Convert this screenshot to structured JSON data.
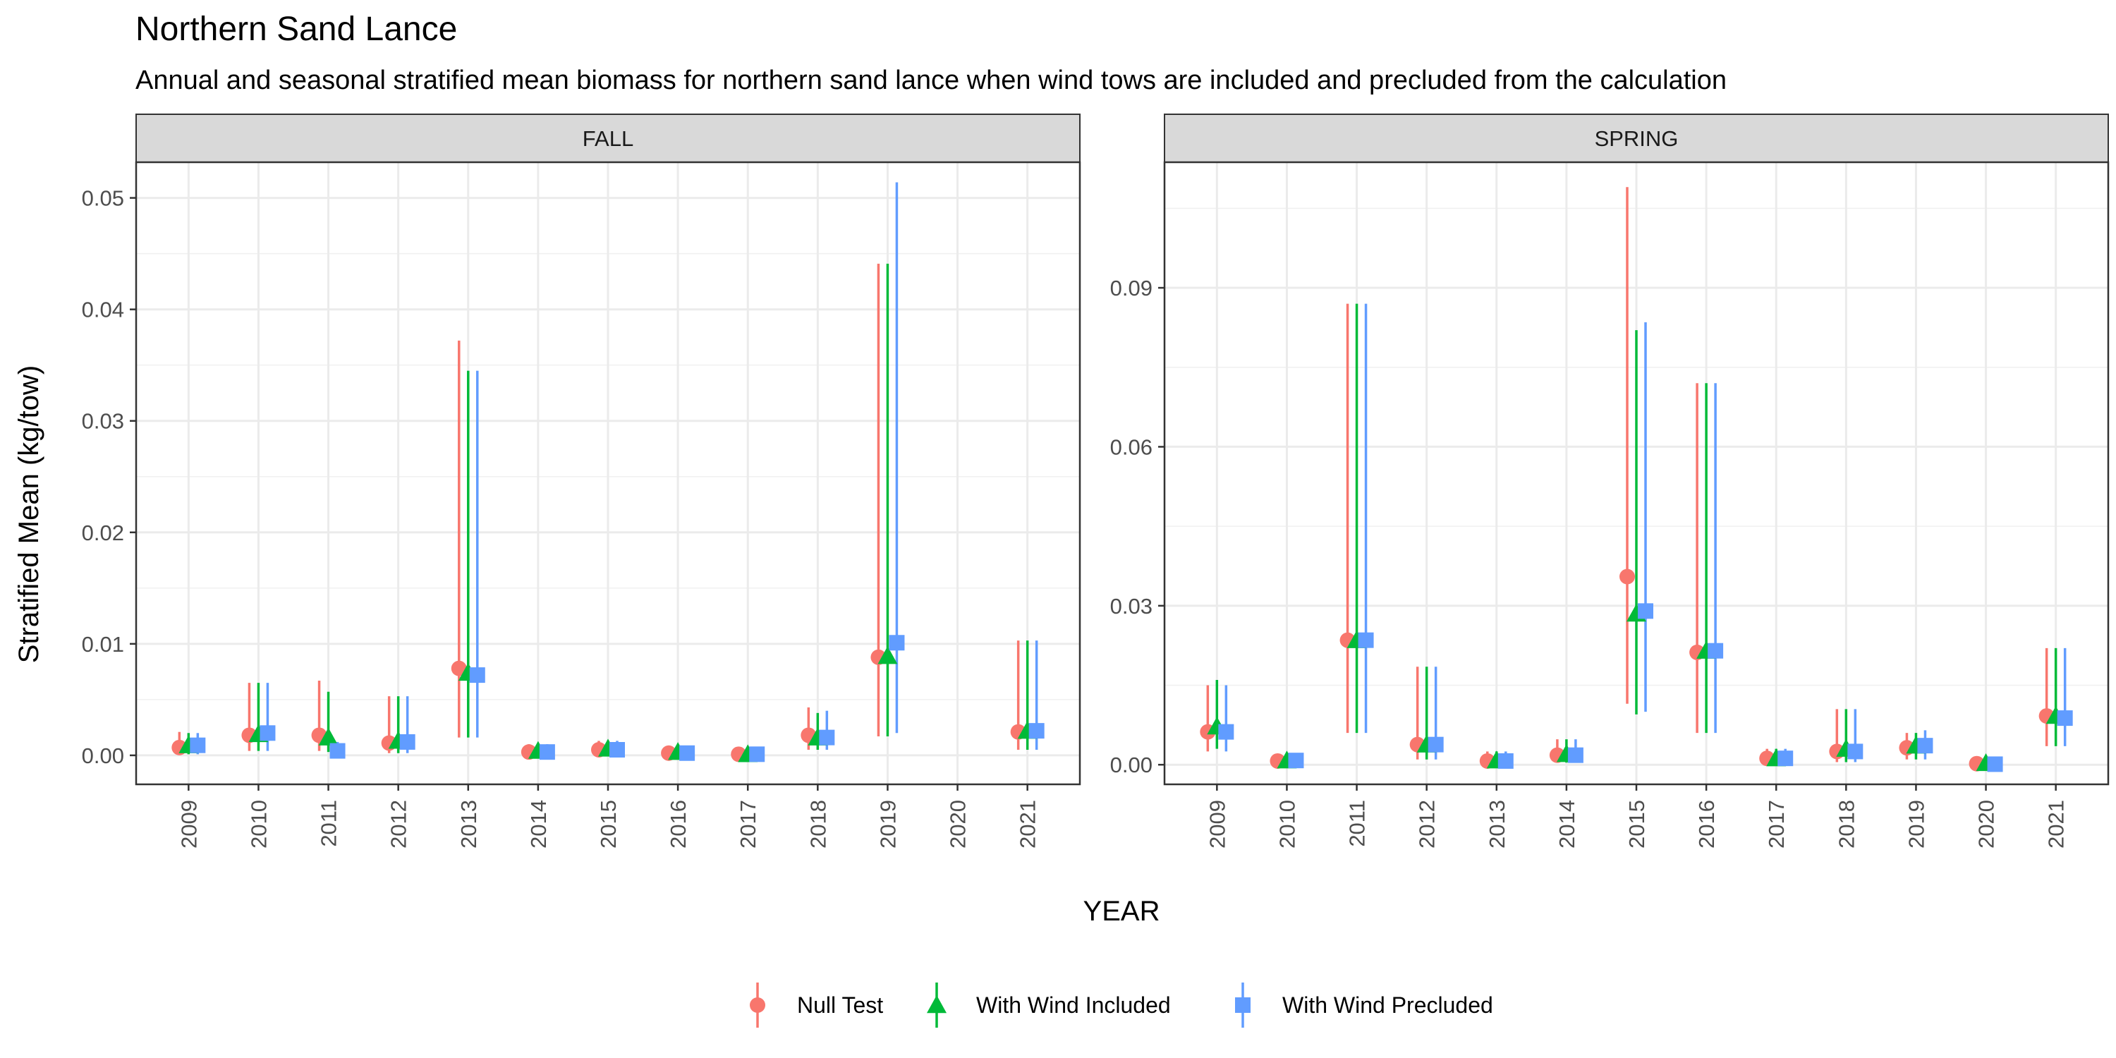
{
  "title": "Northern Sand Lance",
  "subtitle": "Annual and seasonal stratified mean biomass for northern sand lance when wind tows are included and precluded from the calculation",
  "chart_data": {
    "type": "scatter",
    "xlabel": "YEAR",
    "ylabel": "Stratified Mean (kg/tow)",
    "legend_position": "bottom",
    "grid": true,
    "series_styles": [
      {
        "name": "Null Test",
        "color": "#F8766D",
        "shape": "circle"
      },
      {
        "name": "With Wind Included",
        "color": "#00BA38",
        "shape": "triangle"
      },
      {
        "name": "With Wind Precluded",
        "color": "#619CFF",
        "shape": "square"
      }
    ],
    "panels": [
      {
        "name": "FALL",
        "x": [
          "2009",
          "2010",
          "2011",
          "2012",
          "2013",
          "2014",
          "2015",
          "2016",
          "2017",
          "2018",
          "2019",
          "2020",
          "2021"
        ],
        "ylim": [
          -0.0026,
          0.0532
        ],
        "yticks": [
          0.0,
          0.01,
          0.02,
          0.03,
          0.04,
          0.05
        ],
        "ytick_labels": [
          "0.00",
          "0.01",
          "0.02",
          "0.03",
          "0.04",
          "0.05"
        ],
        "series": [
          {
            "name": "Null Test",
            "values": [
              0.0007,
              0.0018,
              0.0018,
              0.0011,
              0.0078,
              0.0003,
              0.0005,
              0.0002,
              0.0001,
              0.0018,
              0.0088,
              null,
              0.0021
            ],
            "lower": [
              0.0001,
              0.0004,
              0.0004,
              0.0002,
              0.0016,
              0.0,
              0.0001,
              0.0,
              0.0,
              0.0005,
              0.0017,
              null,
              0.0005
            ],
            "upper": [
              0.0021,
              0.0065,
              0.0067,
              0.0053,
              0.0372,
              0.001,
              0.0013,
              0.0007,
              0.0004,
              0.0043,
              0.0441,
              null,
              0.0103
            ]
          },
          {
            "name": "With Wind Included",
            "values": [
              0.0009,
              0.0019,
              0.0016,
              0.0013,
              0.0074,
              0.0004,
              0.0006,
              0.0003,
              0.0001,
              0.0016,
              0.0089,
              null,
              0.0022
            ],
            "lower": [
              0.0001,
              0.0004,
              0.0003,
              0.0002,
              0.0016,
              0.0,
              0.0001,
              0.0,
              0.0,
              0.0005,
              0.0017,
              null,
              0.0005
            ],
            "upper": [
              0.002,
              0.0065,
              0.0057,
              0.0053,
              0.0345,
              0.001,
              0.0013,
              0.0007,
              0.0004,
              0.0038,
              0.0441,
              null,
              0.0103
            ]
          },
          {
            "name": "With Wind Precluded",
            "values": [
              0.0009,
              0.002,
              0.0004,
              0.0012,
              0.0072,
              0.0003,
              0.0005,
              0.0002,
              0.0001,
              0.0016,
              0.0101,
              null,
              0.0022
            ],
            "lower": [
              0.0001,
              0.0004,
              0.0,
              0.0002,
              0.0016,
              0.0,
              0.0001,
              0.0,
              0.0,
              0.0005,
              0.002,
              null,
              0.0005
            ],
            "upper": [
              0.002,
              0.0065,
              0.0012,
              0.0053,
              0.0345,
              0.001,
              0.0013,
              0.0007,
              0.0004,
              0.004,
              0.0514,
              null,
              0.0103
            ]
          }
        ]
      },
      {
        "name": "SPRING",
        "x": [
          "2009",
          "2010",
          "2011",
          "2012",
          "2013",
          "2014",
          "2015",
          "2016",
          "2017",
          "2018",
          "2019",
          "2020",
          "2021"
        ],
        "ylim": [
          -0.0037,
          0.1137
        ],
        "yticks": [
          0.0,
          0.03,
          0.06,
          0.09
        ],
        "ytick_labels": [
          "0.00",
          "0.03",
          "0.06",
          "0.09"
        ],
        "series": [
          {
            "name": "Null Test",
            "values": [
              0.0062,
              0.0007,
              0.0235,
              0.0038,
              0.0007,
              0.0018,
              0.0355,
              0.0212,
              0.0012,
              0.0025,
              0.0032,
              0.0002,
              0.0092
            ],
            "lower": [
              0.0025,
              0.0001,
              0.006,
              0.001,
              0.0001,
              0.0004,
              0.0115,
              0.006,
              0.0002,
              0.0005,
              0.001,
              0.0,
              0.0035
            ],
            "upper": [
              0.015,
              0.002,
              0.087,
              0.0185,
              0.0025,
              0.0048,
              0.109,
              0.072,
              0.003,
              0.0105,
              0.006,
              0.001,
              0.022
            ]
          },
          {
            "name": "With Wind Included",
            "values": [
              0.0072,
              0.0008,
              0.0235,
              0.0038,
              0.0008,
              0.002,
              0.0285,
              0.0215,
              0.0012,
              0.003,
              0.0036,
              0.0003,
              0.0092
            ],
            "lower": [
              0.003,
              0.0001,
              0.006,
              0.001,
              0.0001,
              0.0004,
              0.0095,
              0.006,
              0.0002,
              0.0005,
              0.001,
              0.0,
              0.0035
            ],
            "upper": [
              0.016,
              0.002,
              0.087,
              0.0185,
              0.0025,
              0.0048,
              0.082,
              0.072,
              0.003,
              0.0105,
              0.006,
              0.001,
              0.022
            ]
          },
          {
            "name": "With Wind Precluded",
            "values": [
              0.0062,
              0.0008,
              0.0235,
              0.0038,
              0.0007,
              0.0018,
              0.029,
              0.0215,
              0.0012,
              0.0025,
              0.0036,
              0.0001,
              0.0088
            ],
            "lower": [
              0.0025,
              0.0001,
              0.006,
              0.001,
              0.0001,
              0.0004,
              0.01,
              0.006,
              0.0002,
              0.0005,
              0.001,
              0.0,
              0.0035
            ],
            "upper": [
              0.015,
              0.002,
              0.087,
              0.0185,
              0.0025,
              0.0048,
              0.0835,
              0.072,
              0.003,
              0.0105,
              0.0065,
              0.001,
              0.022
            ]
          }
        ]
      }
    ]
  }
}
